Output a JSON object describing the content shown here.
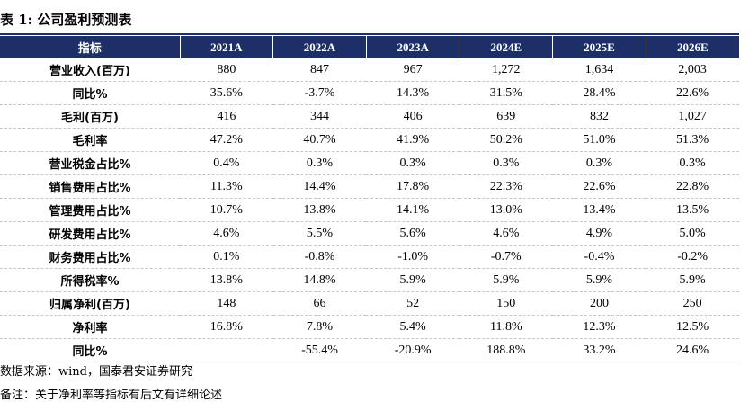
{
  "title": "表 1:  公司盈利预测表",
  "colors": {
    "header_bg": "#1c2f66",
    "header_text": "#ffffff",
    "rule": "#1c2f66"
  },
  "table": {
    "header_label": "指标",
    "years": [
      "2021A",
      "2022A",
      "2023A",
      "2024E",
      "2025E",
      "2026E"
    ],
    "rows": [
      {
        "label": "营业收入(百万)",
        "values": [
          "880",
          "847",
          "967",
          "1,272",
          "1,634",
          "2,003"
        ]
      },
      {
        "label": "同比%",
        "values": [
          "35.6%",
          "-3.7%",
          "14.3%",
          "31.5%",
          "28.4%",
          "22.6%"
        ]
      },
      {
        "label": "毛利(百万)",
        "values": [
          "416",
          "344",
          "406",
          "639",
          "832",
          "1,027"
        ]
      },
      {
        "label": "毛利率",
        "values": [
          "47.2%",
          "40.7%",
          "41.9%",
          "50.2%",
          "51.0%",
          "51.3%"
        ]
      },
      {
        "label": "营业税金占比%",
        "values": [
          "0.4%",
          "0.3%",
          "0.3%",
          "0.3%",
          "0.3%",
          "0.3%"
        ]
      },
      {
        "label": "销售费用占比%",
        "values": [
          "11.3%",
          "14.4%",
          "17.8%",
          "22.3%",
          "22.6%",
          "22.8%"
        ]
      },
      {
        "label": "管理费用占比%",
        "values": [
          "10.7%",
          "13.8%",
          "14.1%",
          "13.0%",
          "13.4%",
          "13.5%"
        ]
      },
      {
        "label": "研发费用占比%",
        "values": [
          "4.6%",
          "5.5%",
          "5.6%",
          "4.6%",
          "4.9%",
          "5.0%"
        ]
      },
      {
        "label": "财务费用占比%",
        "values": [
          "0.1%",
          "-0.8%",
          "-1.0%",
          "-0.7%",
          "-0.4%",
          "-0.2%"
        ]
      },
      {
        "label": "所得税率%",
        "values": [
          "13.8%",
          "14.8%",
          "5.9%",
          "5.9%",
          "5.9%",
          "5.9%"
        ]
      },
      {
        "label": "归属净利(百万)",
        "values": [
          "148",
          "66",
          "52",
          "150",
          "200",
          "250"
        ]
      },
      {
        "label": "净利率",
        "values": [
          "16.8%",
          "7.8%",
          "5.4%",
          "11.8%",
          "12.3%",
          "12.5%"
        ]
      },
      {
        "label": "同比%",
        "values": [
          "",
          "-55.4%",
          "-20.9%",
          "188.8%",
          "33.2%",
          "24.6%"
        ]
      }
    ]
  },
  "source": "数据来源：wind，国泰君安证券研究",
  "note": "备注：关于净利率等指标有后文有详细论述"
}
